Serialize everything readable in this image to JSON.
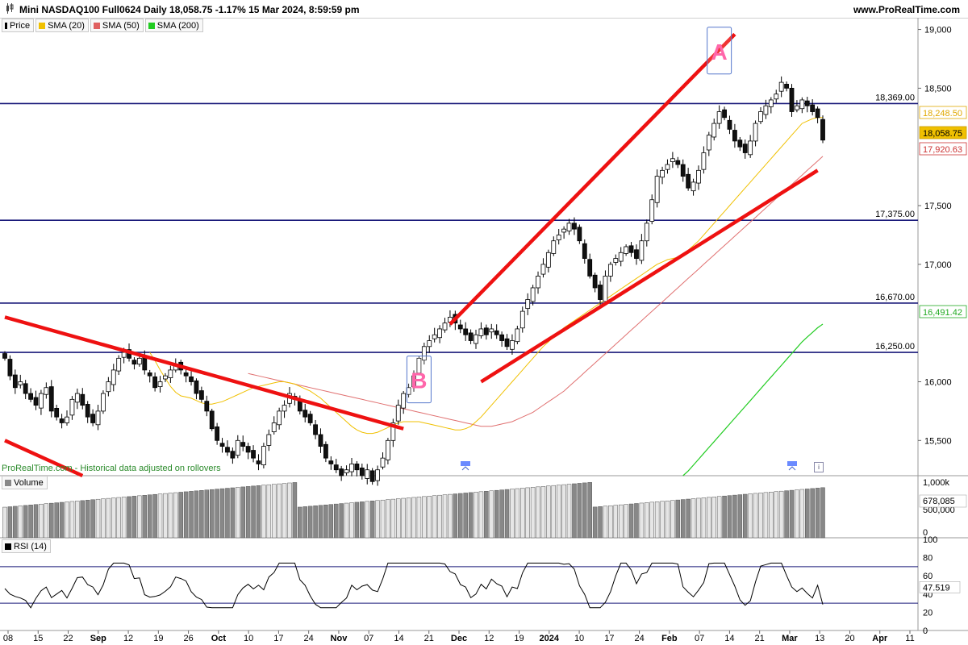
{
  "header": {
    "title": "Mini NASDAQ100 Full0624 Daily 18,058.75 -1.17% 15 Mar 2024, 8:59:59 pm",
    "brand": "www.ProRealTime.com"
  },
  "legend": [
    {
      "label": "Price",
      "color": "#000000",
      "icon": "price-icon"
    },
    {
      "label": "SMA (20)",
      "color": "#f0c000",
      "icon": "sma20-swatch-icon"
    },
    {
      "label": "SMA (50)",
      "color": "#e06060",
      "icon": "sma50-swatch-icon"
    },
    {
      "label": "SMA (200)",
      "color": "#22cc22",
      "icon": "sma200-swatch-icon"
    }
  ],
  "watermark": "ProRealTime.com - Historical data adjusted on rollovers",
  "volume_panel": {
    "label": "Volume"
  },
  "rsi_panel": {
    "label": "RSI (14)"
  },
  "chart_data": [
    {
      "type": "candlestick",
      "title": "Mini NASDAQ100 Full0624 Daily",
      "ylim": [
        15200,
        19100
      ],
      "y_ticks": [
        "19,000",
        "18,500",
        "17,500",
        "17,000",
        "16,000",
        "15,500"
      ],
      "x_ticks": [
        "08",
        "15",
        "22",
        "Sep",
        "12",
        "19",
        "26",
        "Oct",
        "10",
        "17",
        "24",
        "Nov",
        "07",
        "14",
        "21",
        "Dec",
        "12",
        "19",
        "2024",
        "10",
        "17",
        "24",
        "Feb",
        "07",
        "14",
        "21",
        "Mar",
        "13",
        "20",
        "Apr",
        "11"
      ],
      "horizontal_levels": [
        {
          "value": 18369,
          "label": "18,369.00"
        },
        {
          "value": 17375,
          "label": "17,375.00"
        },
        {
          "value": 16670,
          "label": "16,670.00"
        },
        {
          "value": 16250,
          "label": "16,250.00"
        }
      ],
      "price_badges": [
        {
          "value": "18,248.50",
          "color": "#e0a800",
          "bg": "#ffffff"
        },
        {
          "value": "18,058.75",
          "color": "#000000",
          "bg": "#f0c000"
        },
        {
          "value": "17,920.63",
          "color": "#cc3333",
          "bg": "#ffffff"
        },
        {
          "value": "16,491.42",
          "color": "#22aa22",
          "bg": "#ffffff"
        }
      ],
      "annotations": [
        {
          "text": "A",
          "color": "#ff66aa"
        },
        {
          "text": "B",
          "color": "#ff66aa"
        }
      ],
      "trendlines": [
        {
          "name": "upper-channel",
          "from": [
            86,
            16490
          ],
          "to": [
            141,
            18960
          ]
        },
        {
          "name": "lower-channel",
          "from": [
            92,
            16000
          ],
          "to": [
            157,
            17800
          ]
        },
        {
          "name": "down-trend",
          "from": [
            0,
            16550
          ],
          "to": [
            77,
            15600
          ]
        },
        {
          "name": "down-trend-low",
          "from": [
            0,
            15500
          ],
          "to": [
            15,
            15200
          ]
        }
      ],
      "closes": [
        16200,
        16050,
        15950,
        16000,
        15900,
        15850,
        15800,
        15900,
        15950,
        15750,
        15700,
        15650,
        15700,
        15850,
        15900,
        15800,
        15700,
        15650,
        15750,
        15900,
        16000,
        16100,
        16200,
        16250,
        16200,
        16150,
        16200,
        16100,
        16050,
        15950,
        16000,
        16050,
        16100,
        16150,
        16100,
        16050,
        16000,
        15900,
        15850,
        15750,
        15600,
        15500,
        15450,
        15400,
        15350,
        15500,
        15450,
        15400,
        15350,
        15300,
        15450,
        15550,
        15650,
        15750,
        15800,
        15900,
        15850,
        15750,
        15700,
        15650,
        15550,
        15450,
        15350,
        15300,
        15250,
        15200,
        15250,
        15300,
        15250,
        15200,
        15250,
        15150,
        15250,
        15350,
        15500,
        15650,
        15800,
        15900,
        15950,
        16050,
        16200,
        16300,
        16350,
        16400,
        16450,
        16500,
        16550,
        16500,
        16450,
        16400,
        16350,
        16400,
        16450,
        16400,
        16450,
        16400,
        16350,
        16300,
        16350,
        16450,
        16600,
        16700,
        16800,
        16900,
        17000,
        17100,
        17200,
        17250,
        17300,
        17350,
        17300,
        17200,
        17050,
        16900,
        16800,
        16700,
        16900,
        17000,
        17050,
        17100,
        17150,
        17100,
        17050,
        17200,
        17350,
        17550,
        17750,
        17800,
        17850,
        17900,
        17850,
        17750,
        17650,
        17700,
        17800,
        17950,
        18100,
        18200,
        18300,
        18250,
        18150,
        18050,
        18000,
        17950,
        18050,
        18200,
        18300,
        18350,
        18400,
        18450,
        18550,
        18500,
        18300,
        18350,
        18400,
        18350,
        18300,
        18250,
        18058
      ],
      "sma20": [
        16250,
        16180,
        16100,
        16030,
        15960,
        15910,
        15880,
        15870,
        15860,
        15840,
        15820,
        15810,
        15810,
        15820,
        15830,
        15850,
        15870,
        15890,
        15910,
        15930,
        15950,
        15960,
        15970,
        15980,
        15990,
        16000,
        16000,
        15990,
        15980,
        15960,
        15940,
        15920,
        15890,
        15860,
        15820,
        15780,
        15740,
        15700,
        15660,
        15620,
        15590,
        15570,
        15560,
        15560,
        15570,
        15590,
        15610,
        15630,
        15650,
        15660,
        15660,
        15660,
        15660,
        15650,
        15640,
        15630,
        15620,
        15610,
        15600,
        15590,
        15590,
        15600,
        15620,
        15660,
        15700,
        15750,
        15800,
        15850,
        15900,
        15950,
        16000,
        16050,
        16100,
        16150,
        16200,
        16250,
        16300,
        16340,
        16380,
        16420,
        16460,
        16490,
        16520,
        16550,
        16580,
        16610,
        16640,
        16670,
        16700,
        16730,
        16760,
        16790,
        16820,
        16850,
        16880,
        16910,
        16940,
        16970,
        17000,
        17020,
        17040,
        17050,
        17060,
        17080,
        17120,
        17160,
        17200,
        17250,
        17300,
        17350,
        17400,
        17450,
        17500,
        17550,
        17600,
        17650,
        17700,
        17750,
        17800,
        17850,
        17900,
        17950,
        18000,
        18050,
        18100,
        18150,
        18200,
        18220,
        18240,
        18250,
        18250
      ],
      "sma50": [
        16070,
        16060,
        16050,
        16040,
        16030,
        16020,
        16010,
        16000,
        15990,
        15980,
        15970,
        15960,
        15950,
        15940,
        15930,
        15920,
        15910,
        15900,
        15890,
        15880,
        15870,
        15860,
        15850,
        15840,
        15830,
        15820,
        15810,
        15800,
        15790,
        15780,
        15770,
        15760,
        15750,
        15740,
        15730,
        15720,
        15710,
        15700,
        15690,
        15680,
        15670,
        15660,
        15650,
        15640,
        15630,
        15620,
        15620,
        15620,
        15630,
        15640,
        15650,
        15660,
        15680,
        15700,
        15720,
        15740,
        15770,
        15800,
        15830,
        15860,
        15890,
        15920,
        15960,
        16000,
        16040,
        16080,
        16120,
        16160,
        16200,
        16240,
        16280,
        16320,
        16360,
        16400,
        16440,
        16480,
        16520,
        16560,
        16600,
        16640,
        16680,
        16720,
        16760,
        16800,
        16840,
        16880,
        16920,
        16960,
        17000,
        17040,
        17080,
        17120,
        17160,
        17200,
        17240,
        17280,
        17320,
        17360,
        17400,
        17440,
        17480,
        17520,
        17560,
        17600,
        17640,
        17680,
        17720,
        17760,
        17800,
        17840,
        17880,
        17920
      ],
      "sma200": [
        15200,
        15240,
        15290,
        15340,
        15390,
        15440,
        15490,
        15540,
        15590,
        15640,
        15690,
        15740,
        15790,
        15840,
        15890,
        15940,
        15990,
        16040,
        16090,
        16140,
        16190,
        16240,
        16290,
        16340,
        16380,
        16420,
        16460,
        16491
      ],
      "volume": {
        "ylim": [
          0,
          1000000
        ],
        "y_ticks": [
          "1,000k",
          "500,000",
          "0"
        ],
        "last_value": "678,085"
      },
      "rsi": {
        "ylim": [
          0,
          100
        ],
        "y_ticks": [
          "100",
          "80",
          "60",
          "40",
          "20",
          "0"
        ],
        "levels": [
          70,
          30
        ],
        "last_value": "47.519"
      }
    }
  ]
}
